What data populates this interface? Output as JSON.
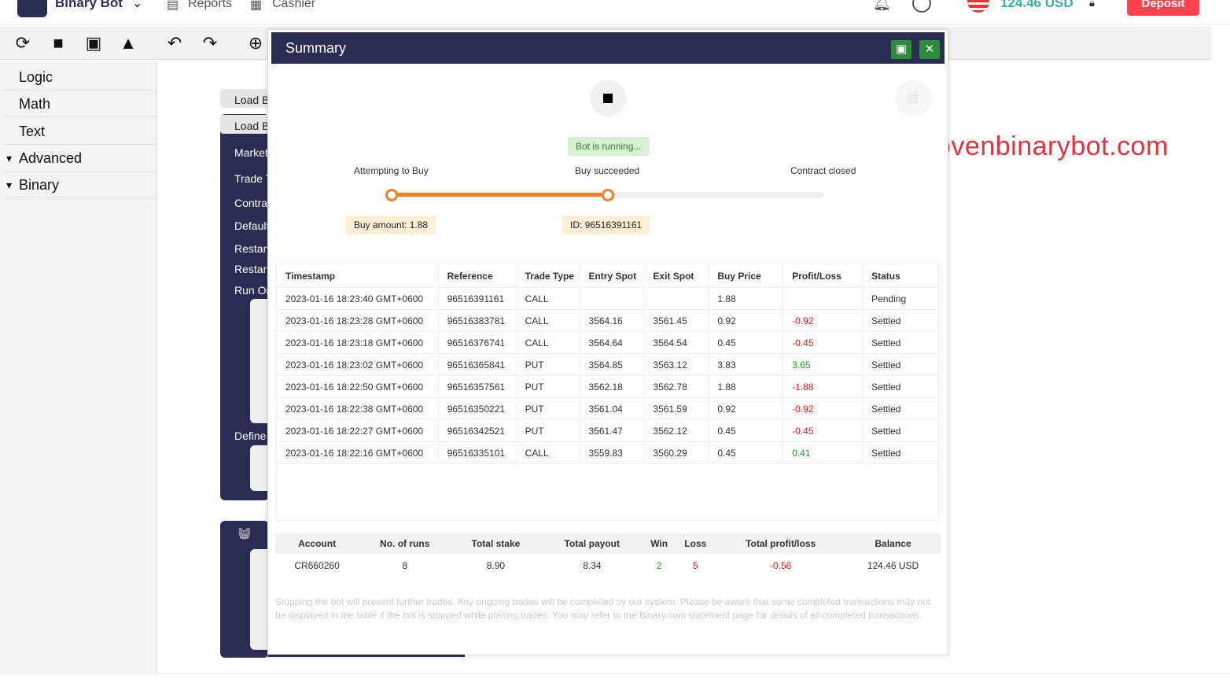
{
  "header": {
    "brand": "Binary Bot",
    "nav": [
      "Reports",
      "Cashier"
    ],
    "balance": "124.46 USD",
    "deposit": "Deposit"
  },
  "sidebar": {
    "items": [
      {
        "label": "Logic",
        "arrow": ""
      },
      {
        "label": "Math",
        "arrow": ""
      },
      {
        "label": "Text",
        "arrow": ""
      },
      {
        "label": "Advanced",
        "arrow": "▾"
      },
      {
        "label": "Binary",
        "arrow": "▾"
      }
    ]
  },
  "workspace": {
    "load1": "Load Block",
    "load2": "Load Block",
    "labels": [
      "Market",
      "Trade Type",
      "Contract",
      "Default",
      "Restart",
      "Restart",
      "Run Once",
      "Define"
    ]
  },
  "modal": {
    "title": "Summary",
    "status": "Bot is running...",
    "steps": [
      "Attempting to Buy",
      "Buy succeeded",
      "Contract closed"
    ],
    "buy_amount": "Buy amount: 1.88",
    "contract_id": "ID: 96516391161",
    "progress_fraction": 0.5,
    "columns": [
      "Timestamp",
      "Reference",
      "Trade Type",
      "Entry Spot",
      "Exit Spot",
      "Buy Price",
      "Profit/Loss",
      "Status"
    ],
    "rows": [
      [
        "2023-01-16 18:23:40 GMT+0600",
        "96516391161",
        "CALL",
        "",
        "",
        "1.88",
        "",
        "Pending"
      ],
      [
        "2023-01-16 18:23:28 GMT+0600",
        "96516383781",
        "CALL",
        "3564.16",
        "3561.45",
        "0.92",
        "-0.92",
        "Settled"
      ],
      [
        "2023-01-16 18:23:18 GMT+0600",
        "96516376741",
        "CALL",
        "3564.64",
        "3564.54",
        "0.45",
        "-0.45",
        "Settled"
      ],
      [
        "2023-01-16 18:23:02 GMT+0600",
        "96516365841",
        "PUT",
        "3564.85",
        "3563.12",
        "3.83",
        "3.65",
        "Settled"
      ],
      [
        "2023-01-16 18:22:50 GMT+0600",
        "96516357561",
        "PUT",
        "3562.18",
        "3562.78",
        "1.88",
        "-1.88",
        "Settled"
      ],
      [
        "2023-01-16 18:22:38 GMT+0600",
        "96516350221",
        "PUT",
        "3561.04",
        "3561.59",
        "0.92",
        "-0.92",
        "Settled"
      ],
      [
        "2023-01-16 18:22:27 GMT+0600",
        "96516342521",
        "PUT",
        "3561.47",
        "3562.12",
        "0.45",
        "-0.45",
        "Settled"
      ],
      [
        "2023-01-16 18:22:16 GMT+0600",
        "96516335101",
        "CALL",
        "3559.83",
        "3560.29",
        "0.45",
        "0.41",
        "Settled"
      ]
    ],
    "stats_columns": [
      "Account",
      "No. of runs",
      "Total stake",
      "Total payout",
      "Win",
      "Loss",
      "Total profit/loss",
      "Balance"
    ],
    "stats": [
      "CR660260",
      "8",
      "8.90",
      "8.34",
      "2",
      "5",
      "-0.56",
      "124.46 USD"
    ],
    "note": "Stopping the bot will prevent further trades. Any ongoing trades will be completed by our system. Please be aware that some completed transactions may not be displayed in the table if the bot is stopped while placing trades. You may refer to the Binary.com statement page for details of all completed transactions."
  },
  "watermark": "Provenbinarybot.com",
  "colors": {
    "navy": "#2a2d52",
    "orange": "#f0802a",
    "red": "#ff444f",
    "green": "#2e8b3a"
  }
}
